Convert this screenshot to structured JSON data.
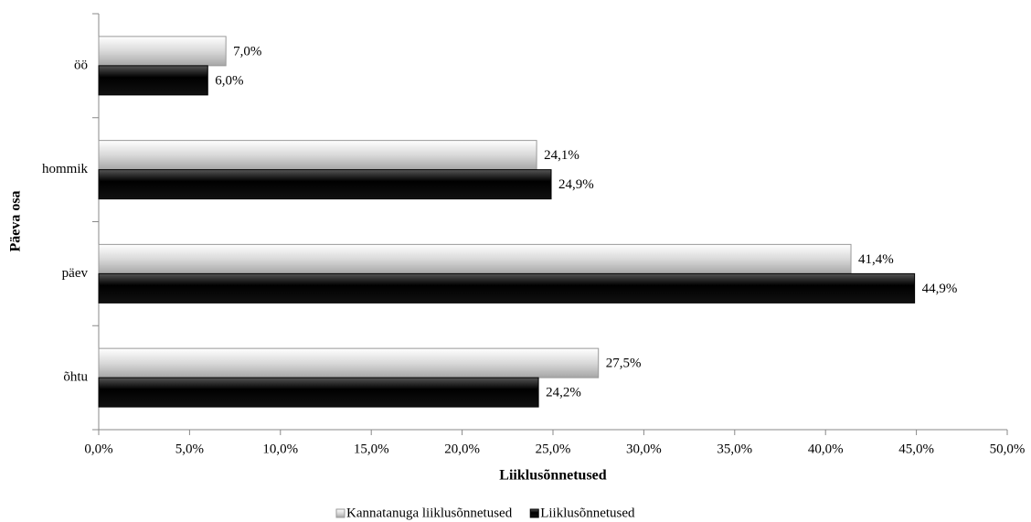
{
  "chart_data": {
    "type": "hbar",
    "x_label": "Liiklusõnnetused",
    "y_label": "Päeva osa",
    "categories": [
      "öö",
      "hommik",
      "päev",
      "õhtu"
    ],
    "series": [
      {
        "name": "Kannatanuga liiklusõnnetused",
        "color": "#d9d9d9",
        "values": [
          7.0,
          24.1,
          41.4,
          27.5
        ],
        "value_labels": [
          "7,0%",
          "24,1%",
          "41,4%",
          "27,5%"
        ]
      },
      {
        "name": "Liiklusõnnetused",
        "color": "#000000",
        "values": [
          6.0,
          24.9,
          44.9,
          24.2
        ],
        "value_labels": [
          "6,0%",
          "24,9%",
          "44,9%",
          "24,2%"
        ]
      }
    ],
    "xlim": [
      0,
      50
    ],
    "xticks": [
      {
        "value": 0,
        "label": "0,0%"
      },
      {
        "value": 5,
        "label": "5,0%"
      },
      {
        "value": 10,
        "label": "10,0%"
      },
      {
        "value": 15,
        "label": "15,0%"
      },
      {
        "value": 20,
        "label": "20,0%"
      },
      {
        "value": 25,
        "label": "25,0%"
      },
      {
        "value": 30,
        "label": "30,0%"
      },
      {
        "value": 35,
        "label": "35,0%"
      },
      {
        "value": 40,
        "label": "40,0%"
      },
      {
        "value": 45,
        "label": "45,0%"
      },
      {
        "value": 50,
        "label": "50,0%"
      }
    ],
    "legend": "bottom"
  }
}
